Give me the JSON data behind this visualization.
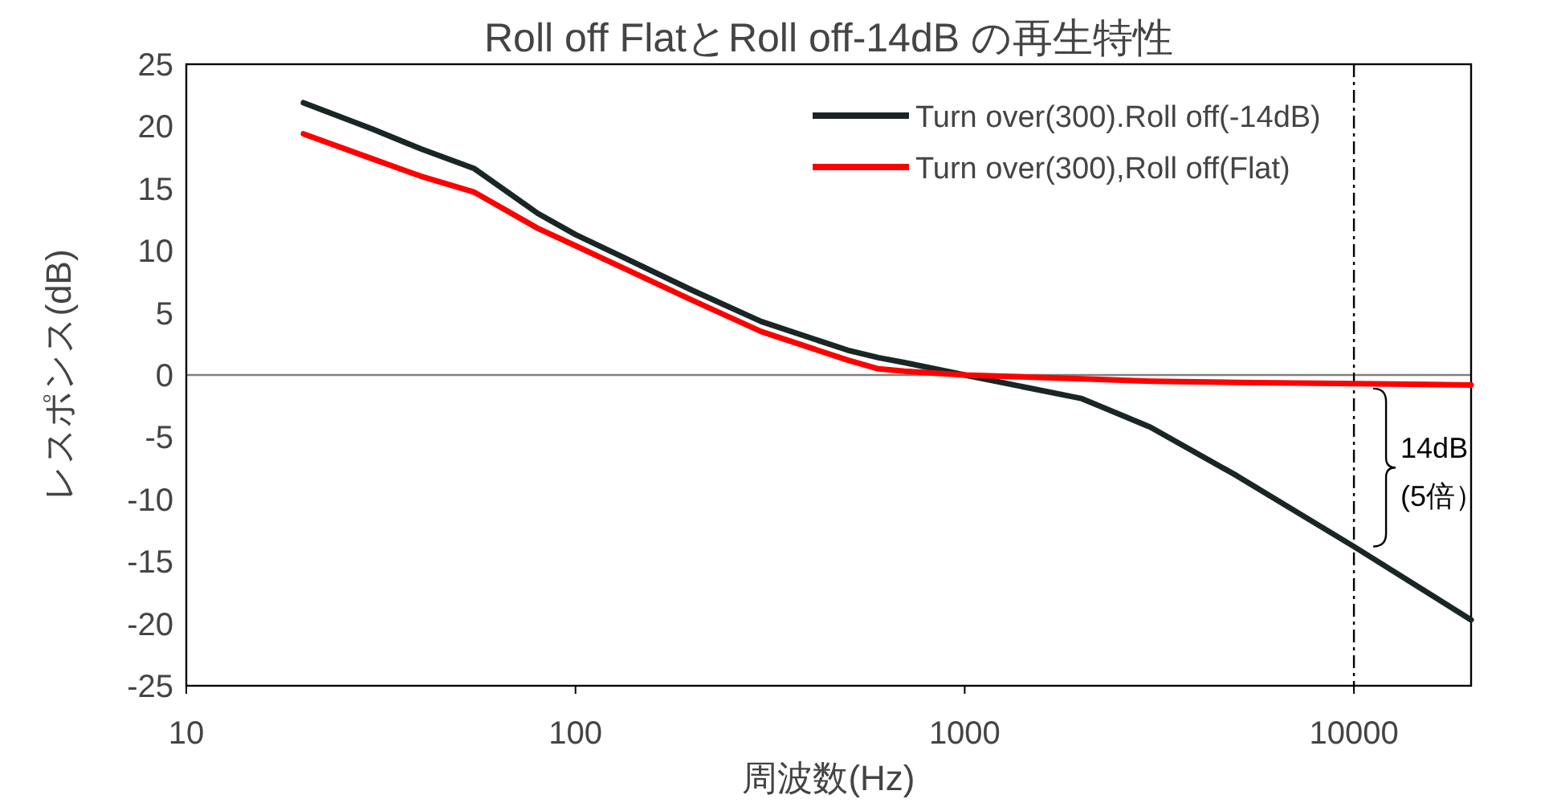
{
  "chart_data": {
    "type": "line",
    "title": "Roll off FlatとRoll off-14dB の再生特性",
    "xlabel": "周波数(Hz)",
    "ylabel": "レスポンス(dB)",
    "x": [
      20,
      30,
      40,
      55,
      80,
      100,
      200,
      300,
      500,
      600,
      700,
      1000,
      2000,
      3000,
      5000,
      10000,
      20000
    ],
    "series": [
      {
        "name": "Turn over(300).Roll off(-14dB)",
        "color": "#1a2626",
        "values": [
          21.9,
          19.8,
          18.2,
          16.6,
          13.0,
          11.3,
          6.8,
          4.3,
          2.0,
          1.4,
          1.0,
          0,
          -1.9,
          -4.2,
          -8.1,
          -13.8,
          -19.7
        ]
      },
      {
        "name": "Turn over(300),Roll off(Flat)",
        "color": "#ff0000",
        "values": [
          19.4,
          17.4,
          16.0,
          14.7,
          11.8,
          10.4,
          6.0,
          3.5,
          1.2,
          0.5,
          0.3,
          0,
          -0.3,
          -0.5,
          -0.6,
          -0.7,
          -0.8
        ]
      }
    ],
    "log": "x",
    "xlim": [
      10,
      20000
    ],
    "xticks": [
      10,
      100,
      1000,
      10000
    ],
    "ylim": [
      -25,
      25
    ],
    "yticks": [
      -25,
      -20,
      -15,
      -10,
      -5,
      0,
      5,
      10,
      15,
      20,
      25
    ],
    "legend": "top right",
    "ref_lines": [
      {
        "axis": "y",
        "value": 0,
        "color": "#808080",
        "line_style": "solid"
      },
      {
        "axis": "x",
        "value": 10000,
        "color": "#000000",
        "line_style": "dashdot"
      }
    ],
    "annotations": [
      "14dB",
      "(5倍）"
    ]
  }
}
